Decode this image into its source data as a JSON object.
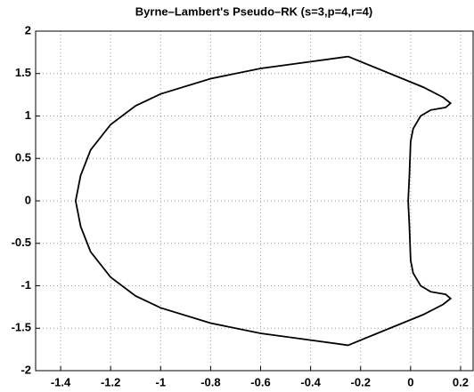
{
  "chart_data": {
    "type": "line",
    "title": "Byrne–Lambert's Pseudo–RK (s=3,p=4,r=4)",
    "x": [
      -0.25,
      -0.4,
      -0.6,
      -0.8,
      -1.0,
      -1.1,
      -1.2,
      -1.28,
      -1.32,
      -1.34,
      -1.32,
      -1.28,
      -1.2,
      -1.1,
      -1.0,
      -0.8,
      -0.6,
      -0.4,
      -0.25,
      0.05,
      0.13,
      0.16,
      0.14,
      0.08,
      0.04,
      0.01,
      0.0,
      -0.005,
      -0.01,
      -0.005,
      0.0,
      0.01,
      0.04,
      0.08,
      0.14,
      0.16,
      0.13,
      0.05,
      -0.25
    ],
    "y": [
      1.7,
      1.64,
      1.56,
      1.44,
      1.26,
      1.12,
      0.9,
      0.6,
      0.3,
      0.0,
      -0.3,
      -0.6,
      -0.9,
      -1.12,
      -1.26,
      -1.44,
      -1.56,
      -1.64,
      -1.7,
      -1.34,
      -1.22,
      -1.15,
      -1.1,
      -1.07,
      -1.0,
      -0.85,
      -0.7,
      -0.3,
      0.0,
      0.3,
      0.7,
      0.85,
      1.0,
      1.07,
      1.1,
      1.15,
      1.22,
      1.34,
      1.7
    ],
    "color": "#000000",
    "xlim": [
      -1.5,
      0.25
    ],
    "xticks": [
      -1.4,
      -1.2,
      -1,
      -0.8,
      -0.6,
      -0.4,
      -0.2,
      0,
      0.2
    ],
    "ylim": [
      -2,
      2
    ],
    "yticks": [
      -2,
      -1.5,
      -1,
      -0.5,
      0,
      0.5,
      1,
      1.5,
      2
    ],
    "grid": true
  }
}
